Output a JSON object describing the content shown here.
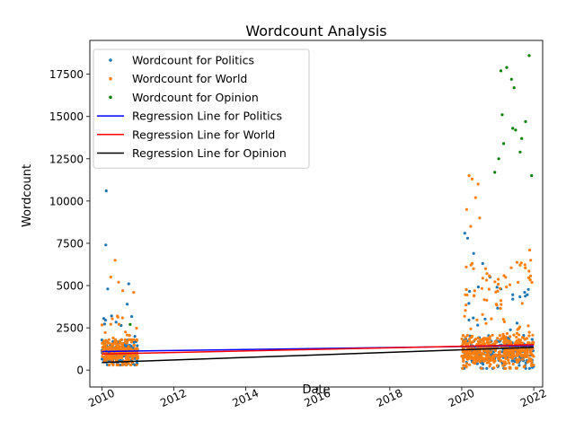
{
  "chart_data": {
    "type": "scatter",
    "title": "Wordcount Analysis",
    "xlabel": "Date",
    "ylabel": "Wordcount",
    "xlim": [
      "2009-09-01",
      "2022-04-01"
    ],
    "ylim": [
      -1000,
      19500
    ],
    "x_ticks": [
      "2010",
      "2012",
      "2014",
      "2016",
      "2018",
      "2020",
      "2022"
    ],
    "y_ticks": [
      "0",
      "2500",
      "5000",
      "7500",
      "10000",
      "12500",
      "15000",
      "17500"
    ],
    "grid": false,
    "legend_position": "top-left",
    "clusters": [
      {
        "start": "2010-01-01",
        "end": "2010-12-31"
      },
      {
        "start": "2020-01-01",
        "end": "2021-12-31"
      }
    ],
    "series": [
      {
        "name": "Wordcount for Politics",
        "color": "#1f77b4",
        "marker": "point",
        "outliers": [
          {
            "x": "2010-02-15",
            "y": 10600
          },
          {
            "x": "2010-02-10",
            "y": 7400
          },
          {
            "x": "2010-03-01",
            "y": 4800
          },
          {
            "x": "2010-04-10",
            "y": 3200
          },
          {
            "x": "2010-10-01",
            "y": 5100
          },
          {
            "x": "2010-09-15",
            "y": 3900
          },
          {
            "x": "2020-02-01",
            "y": 8100
          },
          {
            "x": "2020-03-01",
            "y": 7800
          },
          {
            "x": "2020-05-01",
            "y": 6900
          },
          {
            "x": "2020-08-01",
            "y": 6300
          },
          {
            "x": "2020-10-15",
            "y": 5500
          },
          {
            "x": "2021-02-01",
            "y": 4800
          },
          {
            "x": "2021-06-01",
            "y": 4200
          },
          {
            "x": "2021-10-01",
            "y": 4600
          }
        ]
      },
      {
        "name": "Wordcount for World",
        "color": "#ff7f0e",
        "marker": "point",
        "outliers": [
          {
            "x": "2010-05-15",
            "y": 6500
          },
          {
            "x": "2010-04-01",
            "y": 5500
          },
          {
            "x": "2010-06-20",
            "y": 5200
          },
          {
            "x": "2010-08-01",
            "y": 4700
          },
          {
            "x": "2010-11-20",
            "y": 4600
          },
          {
            "x": "2020-03-15",
            "y": 11500
          },
          {
            "x": "2020-04-15",
            "y": 11300
          },
          {
            "x": "2020-06-15",
            "y": 11000
          },
          {
            "x": "2020-05-20",
            "y": 10200
          },
          {
            "x": "2020-02-20",
            "y": 9500
          },
          {
            "x": "2020-07-01",
            "y": 9000
          },
          {
            "x": "2020-04-01",
            "y": 8500
          },
          {
            "x": "2021-11-20",
            "y": 7100
          },
          {
            "x": "2021-12-01",
            "y": 6500
          }
        ]
      },
      {
        "name": "Wordcount for Opinion",
        "color": "#008000",
        "marker": "point",
        "outliers": [
          {
            "x": "2021-11-15",
            "y": 18600
          },
          {
            "x": "2021-04-01",
            "y": 17900
          },
          {
            "x": "2021-02-01",
            "y": 17700
          },
          {
            "x": "2021-05-20",
            "y": 17200
          },
          {
            "x": "2021-06-15",
            "y": 16700
          },
          {
            "x": "2021-02-15",
            "y": 15100
          },
          {
            "x": "2021-06-01",
            "y": 14300
          },
          {
            "x": "2021-07-01",
            "y": 14200
          },
          {
            "x": "2021-10-10",
            "y": 14700
          },
          {
            "x": "2021-09-01",
            "y": 13700
          },
          {
            "x": "2021-03-01",
            "y": 13400
          },
          {
            "x": "2021-01-10",
            "y": 12500
          },
          {
            "x": "2021-08-15",
            "y": 12900
          },
          {
            "x": "2021-12-10",
            "y": 11500
          },
          {
            "x": "2020-12-01",
            "y": 11700
          },
          {
            "x": "2010-10-15",
            "y": 2700
          }
        ]
      }
    ],
    "regression_lines": [
      {
        "name": "Regression Line for Politics",
        "color": "#0000ff",
        "points": [
          {
            "x": "2010-01-01",
            "y": 1100
          },
          {
            "x": "2021-12-31",
            "y": 1450
          }
        ]
      },
      {
        "name": "Regression Line for World",
        "color": "#ff0000",
        "points": [
          {
            "x": "2010-01-01",
            "y": 950
          },
          {
            "x": "2021-12-31",
            "y": 1500
          }
        ]
      },
      {
        "name": "Regression Line for Opinion",
        "color": "#000000",
        "points": [
          {
            "x": "2010-01-01",
            "y": 450
          },
          {
            "x": "2021-12-31",
            "y": 1350
          }
        ]
      }
    ]
  }
}
